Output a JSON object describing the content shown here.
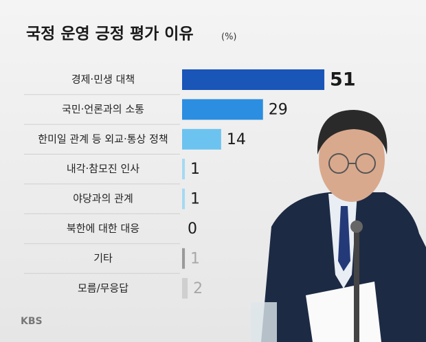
{
  "chart_data": {
    "type": "bar",
    "title": "국정 운영 긍정 평가 이유",
    "unit": "(%)",
    "categories": [
      "경제·민생 대책",
      "국민·언론과의 소통",
      "한미일 관계 등 외교·통상 정책",
      "내각·참모진 인사",
      "야당과의 관계",
      "북한에 대한 대응",
      "기타",
      "모름/무응답"
    ],
    "values": [
      51,
      29,
      14,
      1,
      1,
      0,
      1,
      2
    ],
    "colors": [
      "#1a55b8",
      "#2b8ee0",
      "#6cc3ef",
      "#a6d9f2",
      "#a6d9f2",
      "#a6d9f2",
      "#9a9a9a",
      "#cfcfcf"
    ],
    "label_colors": [
      "#1a1a1a",
      "#1a1a1a",
      "#1a1a1a",
      "#1a1a1a",
      "#1a1a1a",
      "#1a1a1a",
      "#a8a8a8",
      "#a8a8a8"
    ],
    "source": "KBS"
  }
}
